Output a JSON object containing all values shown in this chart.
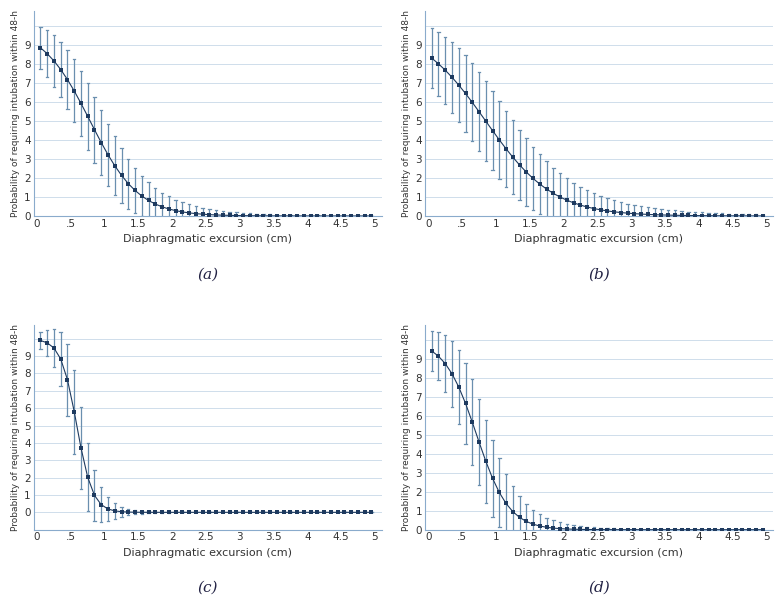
{
  "color": "#1e3a5f",
  "line_color": "#1e3a5f",
  "ci_color": "#6a8faf",
  "background_color": "#ffffff",
  "ylabel": "Probability of requiring intubation within 48-h",
  "xlabel": "Diaphragmatic excursion (cm)",
  "subplots": [
    "(a)",
    "(b)",
    "(c)",
    "(d)"
  ],
  "x_ticks": [
    0,
    0.5,
    1,
    1.5,
    2,
    2.5,
    3,
    3.5,
    4,
    4.5,
    5
  ],
  "x_tick_labels": [
    "0",
    ".5",
    "1",
    "1.5",
    "2",
    "2.5",
    "3",
    "3.5",
    "4",
    "4.5",
    "5"
  ],
  "ytick_vals": [
    0.0,
    0.1,
    0.2,
    0.3,
    0.4,
    0.5,
    0.6,
    0.7,
    0.8,
    0.9,
    1.0
  ],
  "ytick_labels": [
    "0",
    "1",
    "2",
    "3",
    "4",
    "5",
    "6",
    "7",
    "8",
    "9",
    ""
  ],
  "panels": {
    "a": {
      "ylim": [
        0.0,
        1.08
      ],
      "beta0": 2.2,
      "beta1": -2.8,
      "ci_scale": 1.0
    },
    "b": {
      "ylim": [
        0.0,
        1.08
      ],
      "beta0": 1.7,
      "beta1": -2.0,
      "ci_scale": 1.2
    },
    "c": {
      "ylim": [
        -0.1,
        1.08
      ],
      "beta0": 5.0,
      "beta1": -8.5,
      "ci_scale": 1.4
    },
    "d": {
      "ylim": [
        0.0,
        1.08
      ],
      "beta0": 3.0,
      "beta1": -4.2,
      "ci_scale": 1.3
    }
  }
}
